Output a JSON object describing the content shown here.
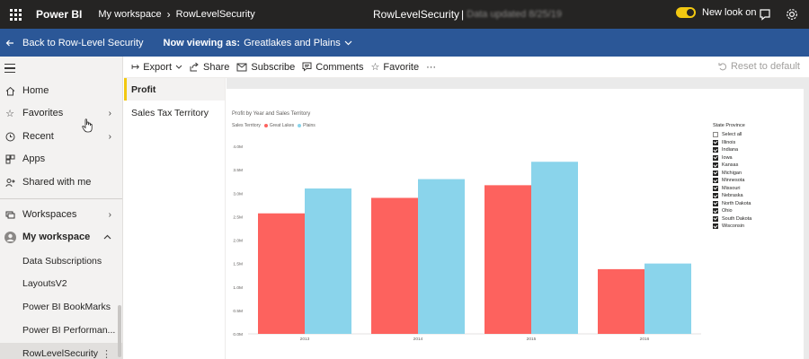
{
  "topbar": {
    "app_name": "Power BI",
    "breadcrumb": [
      "My workspace",
      "RowLevelSecurity"
    ],
    "report_title": "RowLevelSecurity",
    "title_separator": "|",
    "data_updated": "Data updated 8/25/19",
    "new_look_label": "New look on",
    "new_look_on": true
  },
  "rls_bar": {
    "back_label": "Back to Row-Level Security",
    "viewing_label": "Now viewing as:",
    "viewing_value": "Greatlakes and Plains"
  },
  "nav": {
    "items": [
      {
        "label": "Home",
        "icon": "home-icon"
      },
      {
        "label": "Favorites",
        "icon": "star-icon",
        "chevron": true
      },
      {
        "label": "Recent",
        "icon": "clock-icon",
        "chevron": true
      },
      {
        "label": "Apps",
        "icon": "apps-icon"
      },
      {
        "label": "Shared with me",
        "icon": "share-person-icon"
      },
      {
        "label": "Workspaces",
        "icon": "workspaces-icon",
        "chevron": true
      },
      {
        "label": "My workspace",
        "icon": "avatar-icon",
        "chevron": true
      }
    ],
    "workspace_items": [
      "Data Subscriptions",
      "LayoutsV2",
      "Power BI BookMarks",
      "Power BI Performan...",
      "RowLevelSecurity"
    ]
  },
  "actions": {
    "export": "Export",
    "share": "Share",
    "subscribe": "Subscribe",
    "comments": "Comments",
    "favorite": "Favorite",
    "more": "···",
    "reset": "Reset to default"
  },
  "pages": [
    "Profit",
    "Sales Tax Territory"
  ],
  "chart_data": {
    "type": "bar",
    "title": "Profit by Year and Sales Territory",
    "legend_title": "Sales Territory",
    "categories": [
      "2013",
      "2014",
      "2015",
      "2016"
    ],
    "series": [
      {
        "name": "Great Lakes",
        "color": "#fd625e",
        "values": [
          2.57,
          2.9,
          3.17,
          1.38
        ]
      },
      {
        "name": "Plains",
        "color": "#8ad4eb",
        "values": [
          3.1,
          3.3,
          3.67,
          1.5
        ]
      }
    ],
    "ylim": [
      0,
      4
    ],
    "yticks": [
      "0.0M",
      "0.5M",
      "1.0M",
      "1.5M",
      "2.0M",
      "2.5M",
      "3.0M",
      "3.5M",
      "4.0M"
    ],
    "grid": false,
    "legend_position": "top-left"
  },
  "slicer": {
    "title": "State Province",
    "select_all": "Select all",
    "select_all_checked": false,
    "items": [
      "Illinois",
      "Indiana",
      "Iowa",
      "Kansas",
      "Michigan",
      "Minnesota",
      "Missouri",
      "Nebraska",
      "North Dakota",
      "Ohio",
      "South Dakota",
      "Wisconsin"
    ]
  }
}
